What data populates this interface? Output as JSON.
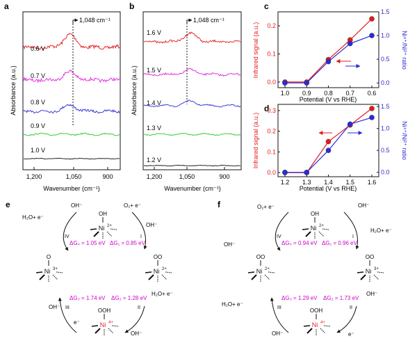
{
  "colors": {
    "red": "#e41a1c",
    "magenta": "#e020e0",
    "blue": "#2b2bd6",
    "green": "#22cc22",
    "black": "#111111",
    "energy": "#cc00cc",
    "ni_oxidized": "#e8202a"
  },
  "chart_data": [
    {
      "panel": "a",
      "type": "line",
      "xlabel": "Wavenumber (cm⁻¹)",
      "ylabel": "Absorbance (a.u.)",
      "xlim": [
        1250,
        830
      ],
      "x_ticks": [
        "1,200",
        "1,050",
        "900"
      ],
      "annotation": "1,048 cm⁻¹",
      "peak_position": 1048,
      "series": [
        {
          "name": "0.6 V",
          "color": "#e41a1c",
          "peak": 1.0
        },
        {
          "name": "0.7 V",
          "color": "#e020e0",
          "peak": 0.65
        },
        {
          "name": "0.8 V",
          "color": "#2b2bd6",
          "peak": 0.5
        },
        {
          "name": "0.9 V",
          "color": "#22cc22",
          "peak": 0.0
        },
        {
          "name": "1.0 V",
          "color": "#111111",
          "peak": 0.0
        }
      ]
    },
    {
      "panel": "b",
      "type": "line",
      "xlabel": "Wavenumber (cm⁻¹)",
      "ylabel": "Absorbance (a.u.)",
      "xlim": [
        1250,
        830
      ],
      "x_ticks": [
        "1,200",
        "1,050",
        "900"
      ],
      "annotation": "1,048 cm⁻¹",
      "peak_position": 1048,
      "series": [
        {
          "name": "1.6 V",
          "color": "#e41a1c",
          "peak": 1.0
        },
        {
          "name": "1.5 V",
          "color": "#e020e0",
          "peak": 0.55
        },
        {
          "name": "1.4 V",
          "color": "#2b2bd6",
          "peak": 0.55
        },
        {
          "name": "1.3 V",
          "color": "#22cc22",
          "peak": 0.0
        },
        {
          "name": "1.2 V",
          "color": "#111111",
          "peak": 0.0
        }
      ]
    },
    {
      "panel": "c",
      "type": "line",
      "xlabel": "Potential (V vs RHE)",
      "ylabel": "Infrared signal (a.u.)",
      "y2label": "Ni⁴⁺/Ni²⁺ ratio",
      "x": [
        1.0,
        0.9,
        0.8,
        0.7,
        0.6
      ],
      "x_ticks": [
        "1.0",
        "0.9",
        "0.8",
        "0.7",
        "0.6"
      ],
      "ylim": [
        -0.02,
        0.25
      ],
      "y_ticks": [
        "0.0",
        "0.1",
        "0.2"
      ],
      "y2lim": [
        -0.1,
        1.5
      ],
      "y2_ticks": [
        "0.0",
        "0.5",
        "1.0",
        "1.5"
      ],
      "series": [
        {
          "axis": "left",
          "color": "#e41a1c",
          "values": [
            0.0,
            0.0,
            0.08,
            0.15,
            0.225
          ]
        },
        {
          "axis": "right",
          "color": "#2b2bd6",
          "values": [
            0.0,
            0.0,
            0.45,
            0.83,
            1.0
          ]
        }
      ]
    },
    {
      "panel": "d",
      "type": "line",
      "xlabel": "Potential (V vs RHE)",
      "ylabel": "Infrared signal (a.u.)",
      "y2label": "Ni⁴⁺/Ni²⁺ ratio",
      "x": [
        1.2,
        1.3,
        1.4,
        1.5,
        1.6
      ],
      "x_ticks": [
        "1.2",
        "1.3",
        "1.4",
        "1.5",
        "1.6"
      ],
      "ylim": [
        -0.02,
        0.33
      ],
      "y_ticks": [
        "0.0",
        "0.1",
        "0.2",
        "0.3"
      ],
      "y2lim": [
        -0.1,
        1.55
      ],
      "y2_ticks": [
        "0.0",
        "0.5",
        "1.0",
        "1.5"
      ],
      "series": [
        {
          "axis": "left",
          "color": "#e41a1c",
          "values": [
            0.0,
            0.0,
            0.15,
            0.23,
            0.31
          ]
        },
        {
          "axis": "right",
          "color": "#2b2bd6",
          "values": [
            0.0,
            0.0,
            0.5,
            1.1,
            1.25
          ]
        }
      ]
    }
  ],
  "panel_labels": {
    "a": "a",
    "b": "b",
    "c": "c",
    "d": "d",
    "e": "e",
    "f": "f"
  },
  "mechanisms": {
    "e": {
      "dG1": "ΔG₁ = 0.85 eV",
      "dG2": "ΔG₂ = 1.28 eV",
      "dG3": "ΔG₃ = 1.74 eV",
      "dG4": "ΔG₄ = 1.05 eV",
      "steps": [
        "I",
        "II",
        "III",
        "IV"
      ],
      "species": {
        "top": "OH",
        "right": "OO",
        "bottom": "OOH",
        "left": "O"
      },
      "center": "Ni",
      "center_charge": {
        "top": "2+",
        "right": "2+",
        "bottom": "4+",
        "left": "3+"
      },
      "reagents": {
        "top_left_in": "H₂O+ e⁻",
        "top_left_out": "OH⁻",
        "top_right_in": "O₂+ e⁻",
        "top_right_out": "OH⁻",
        "bottom_right_in": "H₂O+ e⁻",
        "bottom_right_out": "OH⁻",
        "bottom_left_in": "OH⁻",
        "bottom_left_out": "e⁻"
      }
    },
    "f": {
      "dG1": "ΔG₁ = 0.96 eV",
      "dG2": "ΔG₂ = 1.73 eV",
      "dG3": "ΔG₃ = 1.29 eV",
      "dG4": "ΔG₄ = 0.94 eV",
      "steps": [
        "I",
        "II",
        "III",
        "IV"
      ],
      "species": {
        "top": "OH",
        "right": "OO",
        "bottom": "OOH",
        "left": "OO"
      },
      "center": "Ni",
      "center_charge": {
        "top": "2+",
        "right": "3+",
        "bottom": "4+",
        "left": "2+"
      },
      "reagents": {
        "top_left_in": "O₂+ e⁻",
        "top_left_out": "OH⁻",
        "top_right_in": "OH⁻",
        "top_right_out": "H₂O+ e⁻",
        "bottom_right_in": "OH⁻",
        "bottom_right_out": "e⁻",
        "bottom_left_in": "OH⁻",
        "bottom_left_out": "H₂O+ e⁻"
      }
    }
  }
}
